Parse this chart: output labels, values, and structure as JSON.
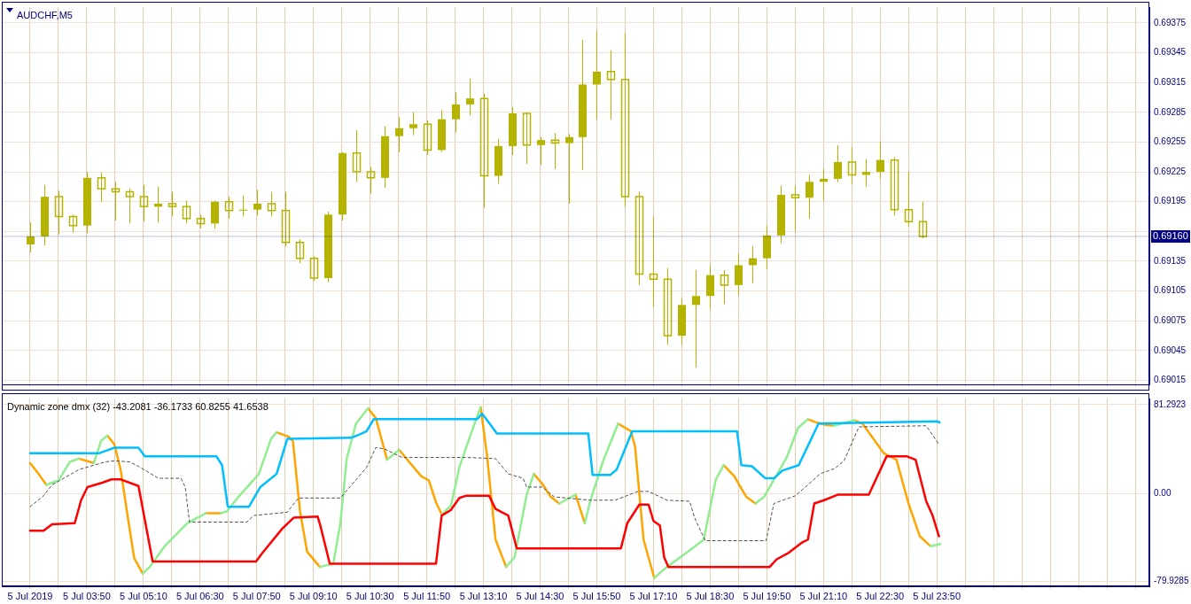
{
  "chart_data": [
    {
      "type": "candlestick",
      "title": "AUDCHF,M5",
      "color": "#b4b400",
      "x": [
        "2019-07-05T02:30",
        "2019-07-05T02:50",
        "2019-07-05T03:10",
        "2019-07-05T03:30",
        "2019-07-05T03:50",
        "2019-07-05T04:10",
        "2019-07-05T04:30",
        "2019-07-05T04:50",
        "2019-07-05T05:10",
        "2019-07-05T05:30",
        "2019-07-05T05:50",
        "2019-07-05T06:10",
        "2019-07-05T06:30",
        "2019-07-05T06:50",
        "2019-07-05T07:10",
        "2019-07-05T07:30",
        "2019-07-05T07:50",
        "2019-07-05T08:10",
        "2019-07-05T08:30",
        "2019-07-05T08:50",
        "2019-07-05T09:10",
        "2019-07-05T09:30",
        "2019-07-05T09:50",
        "2019-07-05T10:10",
        "2019-07-05T10:30",
        "2019-07-05T10:50",
        "2019-07-05T11:10",
        "2019-07-05T11:30",
        "2019-07-05T11:50",
        "2019-07-05T12:10",
        "2019-07-05T12:30",
        "2019-07-05T12:50",
        "2019-07-05T13:10",
        "2019-07-05T13:30",
        "2019-07-05T13:50",
        "2019-07-05T14:10",
        "2019-07-05T14:30",
        "2019-07-05T14:50",
        "2019-07-05T15:10",
        "2019-07-05T15:30",
        "2019-07-05T15:50",
        "2019-07-05T16:10",
        "2019-07-05T16:30",
        "2019-07-05T16:50",
        "2019-07-05T17:10",
        "2019-07-05T17:30",
        "2019-07-05T17:50",
        "2019-07-05T18:10",
        "2019-07-05T18:30",
        "2019-07-05T18:50",
        "2019-07-05T19:10",
        "2019-07-05T19:30",
        "2019-07-05T19:50",
        "2019-07-05T20:10",
        "2019-07-05T20:30",
        "2019-07-05T20:50",
        "2019-07-05T21:10",
        "2019-07-05T21:30",
        "2019-07-05T21:50",
        "2019-07-05T22:10",
        "2019-07-05T22:30",
        "2019-07-05T22:50",
        "2019-07-05T23:10",
        "2019-07-05T23:30"
      ],
      "ohlc": [
        [
          0.69152,
          0.69174,
          0.69144,
          0.6916
        ],
        [
          0.6916,
          0.69212,
          0.69151,
          0.692
        ],
        [
          0.692,
          0.69206,
          0.69162,
          0.6918
        ],
        [
          0.6918,
          0.69182,
          0.69164,
          0.69171
        ],
        [
          0.69171,
          0.69225,
          0.69163,
          0.69219
        ],
        [
          0.69219,
          0.69224,
          0.69195,
          0.69208
        ],
        [
          0.69208,
          0.69215,
          0.69176,
          0.69205
        ],
        [
          0.69205,
          0.69208,
          0.69173,
          0.692
        ],
        [
          0.692,
          0.69212,
          0.69175,
          0.6919
        ],
        [
          0.6919,
          0.6921,
          0.69174,
          0.69193
        ],
        [
          0.69193,
          0.69205,
          0.6918,
          0.6919
        ],
        [
          0.6919,
          0.69196,
          0.69173,
          0.69178
        ],
        [
          0.69178,
          0.69182,
          0.69168,
          0.69173
        ],
        [
          0.69173,
          0.69196,
          0.69168,
          0.69195
        ],
        [
          0.69195,
          0.692,
          0.69178,
          0.69186
        ],
        [
          0.69186,
          0.69201,
          0.6918,
          0.69187
        ],
        [
          0.69187,
          0.69207,
          0.69181,
          0.69193
        ],
        [
          0.69193,
          0.69205,
          0.6918,
          0.69186
        ],
        [
          0.69186,
          0.69205,
          0.6915,
          0.69154
        ],
        [
          0.69154,
          0.69157,
          0.69133,
          0.69138
        ],
        [
          0.69138,
          0.6914,
          0.69115,
          0.69118
        ],
        [
          0.69118,
          0.69185,
          0.69114,
          0.69182
        ],
        [
          0.69182,
          0.69245,
          0.69176,
          0.69244
        ],
        [
          0.69244,
          0.69267,
          0.69215,
          0.69225
        ],
        [
          0.69225,
          0.6923,
          0.69203,
          0.69219
        ],
        [
          0.69219,
          0.69271,
          0.69209,
          0.69261
        ],
        [
          0.69261,
          0.6928,
          0.69245,
          0.69269
        ],
        [
          0.69269,
          0.69285,
          0.69262,
          0.69273
        ],
        [
          0.69273,
          0.69277,
          0.69242,
          0.69247
        ],
        [
          0.69247,
          0.69287,
          0.69245,
          0.69278
        ],
        [
          0.69278,
          0.69305,
          0.69265,
          0.69293
        ],
        [
          0.69293,
          0.69319,
          0.69282,
          0.69299
        ],
        [
          0.69299,
          0.69304,
          0.69189,
          0.69221
        ],
        [
          0.69221,
          0.69258,
          0.69213,
          0.69251
        ],
        [
          0.69251,
          0.6929,
          0.69242,
          0.69284
        ],
        [
          0.69284,
          0.69285,
          0.69233,
          0.69252
        ],
        [
          0.69252,
          0.6926,
          0.69232,
          0.69257
        ],
        [
          0.69257,
          0.69264,
          0.69228,
          0.69254
        ],
        [
          0.69254,
          0.69263,
          0.69193,
          0.6926
        ],
        [
          0.6926,
          0.69358,
          0.69227,
          0.69313
        ],
        [
          0.69313,
          0.69367,
          0.69278,
          0.69326
        ],
        [
          0.69326,
          0.69347,
          0.69278,
          0.69318
        ],
        [
          0.69318,
          0.69365,
          0.6919,
          0.692
        ],
        [
          0.692,
          0.69205,
          0.69111,
          0.69122
        ],
        [
          0.69122,
          0.6918,
          0.69089,
          0.69117
        ],
        [
          0.69117,
          0.69128,
          0.69051,
          0.6906
        ],
        [
          0.6906,
          0.69097,
          0.69051,
          0.69091
        ],
        [
          0.69091,
          0.69126,
          0.69028,
          0.691
        ],
        [
          0.691,
          0.69131,
          0.69087,
          0.69121
        ],
        [
          0.69121,
          0.69126,
          0.69092,
          0.69111
        ],
        [
          0.69111,
          0.69143,
          0.69101,
          0.69131
        ],
        [
          0.69131,
          0.6915,
          0.69113,
          0.69138
        ],
        [
          0.69138,
          0.69171,
          0.69127,
          0.69161
        ],
        [
          0.69161,
          0.69211,
          0.69153,
          0.69202
        ],
        [
          0.69202,
          0.69211,
          0.69165,
          0.69199
        ],
        [
          0.69199,
          0.69222,
          0.69178,
          0.69215
        ],
        [
          0.69215,
          0.69228,
          0.69196,
          0.69218
        ],
        [
          0.69218,
          0.69252,
          0.69215,
          0.69235
        ],
        [
          0.69235,
          0.6925,
          0.69212,
          0.69222
        ],
        [
          0.69222,
          0.69238,
          0.6921,
          0.69225
        ],
        [
          0.69225,
          0.69256,
          0.69218,
          0.69237
        ],
        [
          0.69237,
          0.6924,
          0.69181,
          0.69187
        ],
        [
          0.69187,
          0.69225,
          0.6917,
          0.69175
        ],
        [
          0.69175,
          0.69195,
          0.69158,
          0.6916
        ]
      ],
      "xlim": [
        "2019-07-05T01:50",
        "2019-07-06T04:50"
      ],
      "xticks": [
        {
          "value": "2019-07-05T02:30",
          "label": null
        },
        {
          "value": "2019-07-05T03:10",
          "label": null
        },
        {
          "value": "2019-07-05T03:50",
          "label": null
        },
        {
          "value": "2019-07-05T04:30",
          "label": null
        },
        {
          "value": "2019-07-05T05:10",
          "label": null
        },
        {
          "value": "2019-07-05T05:50",
          "label": null
        },
        {
          "value": "2019-07-05T06:30",
          "label": null
        },
        {
          "value": "2019-07-05T07:10",
          "label": null
        },
        {
          "value": "2019-07-05T07:50",
          "label": null
        },
        {
          "value": "2019-07-05T08:30",
          "label": null
        },
        {
          "value": "2019-07-05T09:10",
          "label": null
        },
        {
          "value": "2019-07-05T09:50",
          "label": null
        },
        {
          "value": "2019-07-05T10:30",
          "label": null
        },
        {
          "value": "2019-07-05T11:10",
          "label": null
        },
        {
          "value": "2019-07-05T11:50",
          "label": null
        },
        {
          "value": "2019-07-05T12:30",
          "label": null
        },
        {
          "value": "2019-07-05T13:10",
          "label": null
        },
        {
          "value": "2019-07-05T13:50",
          "label": null
        },
        {
          "value": "2019-07-05T14:30",
          "label": null
        },
        {
          "value": "2019-07-05T15:10",
          "label": null
        },
        {
          "value": "2019-07-05T15:50",
          "label": null
        },
        {
          "value": "2019-07-05T16:30",
          "label": null
        },
        {
          "value": "2019-07-05T17:10",
          "label": null
        },
        {
          "value": "2019-07-05T17:50",
          "label": null
        },
        {
          "value": "2019-07-05T18:30",
          "label": null
        },
        {
          "value": "2019-07-05T19:10",
          "label": null
        },
        {
          "value": "2019-07-05T19:50",
          "label": null
        },
        {
          "value": "2019-07-05T20:30",
          "label": null
        },
        {
          "value": "2019-07-05T21:10",
          "label": null
        },
        {
          "value": "2019-07-05T21:50",
          "label": null
        },
        {
          "value": "2019-07-05T22:30",
          "label": null
        },
        {
          "value": "2019-07-05T23:10",
          "label": null
        },
        {
          "value": "2019-07-05T23:50",
          "label": null
        },
        {
          "value": "2019-07-06T00:30",
          "label": null
        },
        {
          "value": "2019-07-06T01:10",
          "label": null
        },
        {
          "value": "2019-07-06T01:50",
          "label": null
        },
        {
          "value": "2019-07-06T02:30",
          "label": null
        },
        {
          "value": "2019-07-06T03:10",
          "label": null
        },
        {
          "value": "2019-07-06T03:50",
          "label": null
        },
        {
          "value": "2019-07-06T04:30",
          "label": null
        }
      ],
      "ylim": [
        0.69011,
        0.69391
      ],
      "yticks": [
        0.69015,
        0.69045,
        0.69075,
        0.69105,
        0.69135,
        {
          "value": 0.69165,
          "label": null
        },
        0.69195,
        0.69225,
        0.69255,
        0.69285,
        0.69315,
        0.69345,
        0.69375
      ],
      "ref_lines": [
        {
          "axis": "y",
          "value": 0.6916,
          "label": "0.69160",
          "color": "#000080"
        }
      ],
      "grid": true,
      "tick_labels": "y"
    },
    {
      "type": "line",
      "title": "Dynamic zone dmx (32) -43.2081 -36.1733 60.8255 41.6538",
      "xlim": [
        "2019-07-05T01:50",
        "2019-07-06T04:50"
      ],
      "xticks": [
        {
          "value": "2019-07-05T02:30",
          "label": "5 Jul 2019"
        },
        {
          "value": "2019-07-05T03:10",
          "label": null
        },
        {
          "value": "2019-07-05T03:50",
          "label": "5 Jul 03:50"
        },
        {
          "value": "2019-07-05T04:30",
          "label": null
        },
        {
          "value": "2019-07-05T05:10",
          "label": "5 Jul 05:10"
        },
        {
          "value": "2019-07-05T05:50",
          "label": null
        },
        {
          "value": "2019-07-05T06:30",
          "label": "5 Jul 06:30"
        },
        {
          "value": "2019-07-05T07:10",
          "label": null
        },
        {
          "value": "2019-07-05T07:50",
          "label": "5 Jul 07:50"
        },
        {
          "value": "2019-07-05T08:30",
          "label": null
        },
        {
          "value": "2019-07-05T09:10",
          "label": "5 Jul 09:10"
        },
        {
          "value": "2019-07-05T09:50",
          "label": null
        },
        {
          "value": "2019-07-05T10:30",
          "label": "5 Jul 10:30"
        },
        {
          "value": "2019-07-05T11:10",
          "label": null
        },
        {
          "value": "2019-07-05T11:50",
          "label": "5 Jul 11:50"
        },
        {
          "value": "2019-07-05T12:30",
          "label": null
        },
        {
          "value": "2019-07-05T13:10",
          "label": "5 Jul 13:10"
        },
        {
          "value": "2019-07-05T13:50",
          "label": null
        },
        {
          "value": "2019-07-05T14:30",
          "label": "5 Jul 14:30"
        },
        {
          "value": "2019-07-05T15:10",
          "label": null
        },
        {
          "value": "2019-07-05T15:50",
          "label": "5 Jul 15:50"
        },
        {
          "value": "2019-07-05T16:30",
          "label": null
        },
        {
          "value": "2019-07-05T17:10",
          "label": "5 Jul 17:10"
        },
        {
          "value": "2019-07-05T17:50",
          "label": null
        },
        {
          "value": "2019-07-05T18:30",
          "label": "5 Jul 18:30"
        },
        {
          "value": "2019-07-05T19:10",
          "label": null
        },
        {
          "value": "2019-07-05T19:50",
          "label": "5 Jul 19:50"
        },
        {
          "value": "2019-07-05T20:30",
          "label": null
        },
        {
          "value": "2019-07-05T21:10",
          "label": "5 Jul 21:10"
        },
        {
          "value": "2019-07-05T21:50",
          "label": null
        },
        {
          "value": "2019-07-05T22:30",
          "label": "5 Jul 22:30"
        },
        {
          "value": "2019-07-05T23:10",
          "label": null
        },
        {
          "value": "2019-07-05T23:50",
          "label": "5 Jul 23:50"
        },
        {
          "value": "2019-07-06T00:30",
          "label": null
        },
        {
          "value": "2019-07-06T01:10",
          "label": null
        },
        {
          "value": "2019-07-06T01:50",
          "label": null
        },
        {
          "value": "2019-07-06T02:30",
          "label": null
        },
        {
          "value": "2019-07-06T03:10",
          "label": null
        },
        {
          "value": "2019-07-06T03:50",
          "label": null
        },
        {
          "value": "2019-07-06T04:30",
          "label": null
        }
      ],
      "ylim": [
        -84.7,
        86.9
      ],
      "yticks": [
        -79.9285,
        {
          "value": 0,
          "label": "0.00"
        },
        81.2923
      ],
      "grid": true,
      "series": [
        {
          "color": "#505050",
          "line_style": "dashed",
          "x": [
            "2019-07-05T02:30",
            "2019-07-05T02:49",
            "2019-07-05T03:01",
            "2019-07-05T03:39",
            "2019-07-05T04:16",
            "2019-07-05T04:29",
            "2019-07-05T04:50",
            "2019-07-05T05:03",
            "2019-07-05T05:31",
            "2019-07-05T06:03",
            "2019-07-05T06:09",
            "2019-07-05T06:15",
            "2019-07-05T07:36",
            "2019-07-05T07:46",
            "2019-07-05T08:33",
            "2019-07-05T08:45",
            "2019-07-05T08:49",
            "2019-07-05T09:48",
            "2019-07-05T10:25",
            "2019-07-05T10:38",
            "2019-07-05T10:50",
            "2019-07-05T11:15",
            "2019-07-05T12:49",
            "2019-07-05T13:27",
            "2019-07-05T13:45",
            "2019-07-05T14:06",
            "2019-07-05T14:11",
            "2019-07-05T14:33",
            "2019-07-05T14:50",
            "2019-07-05T15:41",
            "2019-07-05T16:16",
            "2019-07-05T16:48",
            "2019-07-05T17:03",
            "2019-07-05T17:29",
            "2019-07-05T18:01",
            "2019-07-05T18:08",
            "2019-07-05T18:23",
            "2019-07-05T19:49",
            "2019-07-05T20:00",
            "2019-07-05T20:30",
            "2019-07-05T20:48",
            "2019-07-05T21:05",
            "2019-07-05T21:26",
            "2019-07-05T21:39",
            "2019-07-05T22:00",
            "2019-07-05T23:35",
            "2019-07-05T23:53"
          ],
          "values": [
            -12,
            -2,
            8,
            22,
            29,
            30,
            29,
            25,
            14,
            14,
            6,
            -26,
            -26,
            -20,
            -17,
            -7,
            -4,
            -4,
            24,
            42,
            41,
            33,
            33,
            32,
            18,
            14,
            6,
            6,
            -3,
            -6,
            -6,
            2,
            2,
            -6,
            -7,
            -22,
            -43,
            -43,
            -9,
            -2,
            8,
            18,
            23,
            30,
            61,
            62,
            45
          ]
        },
        {
          "color": "#00bfff",
          "x": [
            "2019-07-05T02:30",
            "2019-07-05T04:08",
            "2019-07-05T04:29",
            "2019-07-05T05:03",
            "2019-07-05T05:12",
            "2019-07-05T06:53",
            "2019-07-05T07:01",
            "2019-07-05T07:09",
            "2019-07-05T07:39",
            "2019-07-05T07:55",
            "2019-07-05T08:18",
            "2019-07-05T08:33",
            "2019-07-05T10:03",
            "2019-07-05T10:15",
            "2019-07-05T10:25",
            "2019-07-05T10:35",
            "2019-07-05T13:01",
            "2019-07-05T13:08",
            "2019-07-05T13:14",
            "2019-07-05T13:29",
            "2019-07-05T15:38",
            "2019-07-05T15:44",
            "2019-07-05T16:09",
            "2019-07-05T16:18",
            "2019-07-05T16:40",
            "2019-07-05T19:08",
            "2019-07-05T19:14",
            "2019-07-05T19:29",
            "2019-07-05T19:48",
            "2019-07-05T20:00",
            "2019-07-05T20:12",
            "2019-07-05T20:35",
            "2019-07-05T21:03",
            "2019-07-05T23:51",
            "2019-07-05T23:54"
          ],
          "values": [
            37,
            37,
            42,
            42,
            34,
            34,
            26,
            -12,
            -12,
            6,
            18,
            50,
            51,
            54,
            57,
            68,
            68,
            73,
            68,
            55,
            55,
            17,
            17,
            22,
            57,
            57,
            26,
            25,
            14,
            14,
            21,
            26,
            64,
            66,
            65
          ]
        },
        {
          "color": "#ff0000",
          "x": [
            "2019-07-05T02:30",
            "2019-07-05T02:49",
            "2019-07-05T03:01",
            "2019-07-05T03:33",
            "2019-07-05T03:42",
            "2019-07-05T03:51",
            "2019-07-05T04:12",
            "2019-07-05T04:25",
            "2019-07-05T04:38",
            "2019-07-05T05:03",
            "2019-07-05T05:23",
            "2019-07-05T07:49",
            "2019-07-05T07:57",
            "2019-07-05T08:26",
            "2019-07-05T08:42",
            "2019-07-05T09:16",
            "2019-07-05T09:20",
            "2019-07-05T09:33",
            "2019-07-05T12:03",
            "2019-07-05T12:11",
            "2019-07-05T12:24",
            "2019-07-05T12:36",
            "2019-07-05T12:45",
            "2019-07-05T13:18",
            "2019-07-05T13:27",
            "2019-07-05T13:45",
            "2019-07-05T13:57",
            "2019-07-05T16:24",
            "2019-07-05T16:33",
            "2019-07-05T16:50",
            "2019-07-05T17:03",
            "2019-07-05T17:10",
            "2019-07-05T17:19",
            "2019-07-05T17:25",
            "2019-07-05T17:31",
            "2019-07-05T19:54",
            "2019-07-05T20:04",
            "2019-07-05T20:21",
            "2019-07-05T20:39",
            "2019-07-05T20:48",
            "2019-07-05T20:57",
            "2019-07-05T21:11",
            "2019-07-05T21:30",
            "2019-07-05T22:14",
            "2019-07-05T22:39",
            "2019-07-05T23:08",
            "2019-07-05T23:20",
            "2019-07-05T23:35",
            "2019-07-05T23:44",
            "2019-07-05T23:53"
          ],
          "values": [
            -34,
            -34,
            -28,
            -27,
            -6,
            6,
            10,
            13,
            13,
            7,
            -62,
            -62,
            -55,
            -32,
            -22,
            -21,
            -30,
            -64,
            -64,
            -20,
            -15,
            -4,
            -2,
            -2,
            -14,
            -20,
            -50,
            -50,
            -27,
            -10,
            -10,
            -25,
            -29,
            -58,
            -67,
            -67,
            -60,
            -54,
            -45,
            -42,
            -9,
            -6,
            -1,
            -1,
            34,
            34,
            31,
            -7,
            -20,
            -39
          ]
        },
        {
          "color": "#90ee90",
          "x": [
            "2019-07-05T02:53",
            "2019-07-05T03:10",
            "2019-07-05T03:26",
            "2019-07-05T03:39",
            "2019-07-05T03:48",
            "2019-07-05T04:00",
            "2019-07-05T04:10",
            "2019-07-05T04:19",
            "2019-07-05T04:42",
            "2019-07-05T05:09",
            "2019-07-05T05:19",
            "2019-07-05T05:40",
            "2019-07-05T06:12",
            "2019-07-05T06:38",
            "2019-07-05T06:48",
            "2019-07-05T06:59",
            "2019-07-05T07:08",
            "2019-07-05T07:24",
            "2019-07-05T07:53",
            "2019-07-05T08:10",
            "2019-07-05T08:18",
            "2019-07-05T08:48",
            "2019-07-05T09:19",
            "2019-07-05T09:38",
            "2019-07-05T09:48",
            "2019-07-05T09:57",
            "2019-07-05T10:10",
            "2019-07-05T10:27",
            "2019-07-05T10:42",
            "2019-07-05T10:54",
            "2019-07-05T11:11",
            "2019-07-05T11:42",
            "2019-07-05T12:11",
            "2019-07-05T12:24",
            "2019-07-05T12:36",
            "2019-07-05T12:53",
            "2019-07-05T13:06",
            "2019-07-05T13:24",
            "2019-07-05T13:42",
            "2019-07-05T13:54",
            "2019-07-05T14:11",
            "2019-07-05T14:21",
            "2019-07-05T14:36",
            "2019-07-05T14:57",
            "2019-07-05T15:20",
            "2019-07-05T15:24",
            "2019-07-05T15:33",
            "2019-07-05T15:41",
            "2019-07-05T15:59",
            "2019-07-05T16:20",
            "2019-07-05T16:48",
            "2019-07-05T17:11",
            "2019-07-05T17:29",
            "2019-07-05T17:59",
            "2019-07-05T18:21",
            "2019-07-05T18:38",
            "2019-07-05T18:49",
            "2019-07-05T19:12",
            "2019-07-05T19:34",
            "2019-07-05T19:46",
            "2019-07-05T20:18",
            "2019-07-05T20:34",
            "2019-07-05T20:48",
            "2019-07-05T21:06",
            "2019-07-05T21:24",
            "2019-07-05T21:54",
            "2019-07-05T22:18",
            "2019-07-05T23:41",
            "2019-07-05T23:55"
          ],
          "values": [
            8,
            12,
            29,
            32,
            null,
            28,
            48,
            53,
            null,
            -73,
            -67,
            -48,
            -27,
            -18,
            null,
            -18,
            -16,
            -3,
            18,
            50,
            56,
            null,
            -67,
            -64,
            -27,
            32,
            64,
            78,
            null,
            31,
            40,
            null,
            -19,
            -11,
            24,
            56,
            79,
            null,
            -67,
            -58,
            -1,
            18,
            null,
            -9,
            -1,
            null,
            -27,
            -6,
            30,
            64,
            null,
            -77,
            -67,
            -53,
            -42,
            13,
            26,
            null,
            -9,
            -3,
            33,
            60,
            68,
            null,
            62,
            67,
            null,
            -48,
            -46
          ]
        },
        {
          "color": "#ffa500",
          "x": [
            "2019-07-05T02:30",
            "2019-07-05T02:42",
            "2019-07-05T02:53",
            "2019-07-05T03:12",
            "2019-07-05T03:39",
            "2019-07-05T04:00",
            "2019-07-05T04:06",
            "2019-07-05T04:19",
            "2019-07-05T04:29",
            "2019-07-05T04:38",
            "2019-07-05T04:48",
            "2019-07-05T04:57",
            "2019-07-05T05:09",
            "2019-07-05T05:54",
            "2019-07-05T06:38",
            "2019-07-05T06:59",
            "2019-07-05T07:30",
            "2019-07-05T08:18",
            "2019-07-05T08:35",
            "2019-07-05T08:41",
            "2019-07-05T08:51",
            "2019-07-05T09:01",
            "2019-07-05T09:19",
            "2019-07-05T09:54",
            "2019-07-05T10:27",
            "2019-07-05T10:38",
            "2019-07-05T10:54",
            "2019-07-05T11:00",
            "2019-07-05T11:11",
            "2019-07-05T11:25",
            "2019-07-05T11:42",
            "2019-07-05T11:53",
            "2019-07-05T12:03",
            "2019-07-05T12:11",
            "2019-07-05T12:36",
            "2019-07-05T13:06",
            "2019-07-05T13:15",
            "2019-07-05T13:27",
            "2019-07-05T13:42",
            "2019-07-05T14:00",
            "2019-07-05T14:21",
            "2019-07-05T14:33",
            "2019-07-05T14:45",
            "2019-07-05T14:57",
            "2019-07-05T15:06",
            "2019-07-05T15:20",
            "2019-07-05T15:33",
            "2019-07-05T15:54",
            "2019-07-05T16:20",
            "2019-07-05T16:38",
            "2019-07-05T16:44",
            "2019-07-05T16:56",
            "2019-07-05T17:11",
            "2019-07-05T18:00",
            "2019-07-05T18:49",
            "2019-07-05T19:04",
            "2019-07-05T19:21",
            "2019-07-05T19:34",
            "2019-07-05T20:12",
            "2019-07-05T20:48",
            "2019-07-05T21:00",
            "2019-07-05T21:12",
            "2019-07-05T21:24",
            "2019-07-05T21:36",
            "2019-07-05T21:54",
            "2019-07-05T22:05",
            "2019-07-05T22:35",
            "2019-07-05T22:53",
            "2019-07-05T23:10",
            "2019-07-05T23:26",
            "2019-07-05T23:41"
          ],
          "values": [
            28,
            18,
            8,
            null,
            32,
            28,
            null,
            53,
            45,
            21,
            -22,
            -59,
            -73,
            null,
            -18,
            -18,
            null,
            56,
            52,
            48,
            -16,
            -53,
            -67,
            null,
            78,
            69,
            31,
            null,
            40,
            29,
            16,
            12,
            -8,
            -19,
            null,
            79,
            35,
            -42,
            -67,
            null,
            18,
            9,
            -3,
            -9,
            null,
            -1,
            -27,
            null,
            64,
            57,
            43,
            -42,
            -77,
            null,
            26,
            16,
            -3,
            -9,
            null,
            68,
            65,
            63,
            62,
            null,
            67,
            64,
            37,
            31,
            -9,
            -39,
            -48
          ]
        }
      ]
    }
  ]
}
